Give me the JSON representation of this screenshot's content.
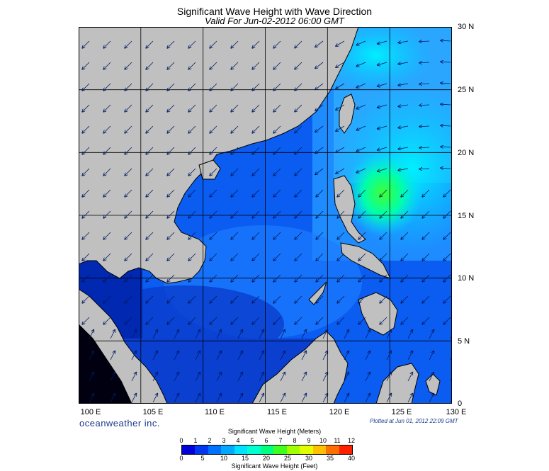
{
  "title": "Significant Wave Height with Wave Direction",
  "subtitle": "Valid For Jun-02-2012 06:00 GMT",
  "lat_labels": [
    "30 N",
    "25 N",
    "20 N",
    "15 N",
    "10 N",
    "5 N",
    "0"
  ],
  "lon_labels": [
    "100 E",
    "105 E",
    "110 E",
    "115 E",
    "120 E",
    "125 E",
    "130 E"
  ],
  "brand": "oceanweather inc.",
  "plotted": "Plotted at Jun 01, 2012 22:09 GMT",
  "legend": {
    "meters_title": "Significant Wave Height (Meters)",
    "feet_title": "Significant Wave Height (Feet)",
    "meters_ticks": [
      "0",
      "1",
      "2",
      "3",
      "4",
      "5",
      "6",
      "7",
      "8",
      "9",
      "10",
      "11",
      "12"
    ],
    "feet_ticks": [
      "0",
      "5",
      "10",
      "15",
      "20",
      "25",
      "30",
      "35",
      "40"
    ],
    "colors": [
      "#0000d8",
      "#0038f0",
      "#0070ff",
      "#00a8ff",
      "#00e0ff",
      "#00ffd0",
      "#00ff80",
      "#40ff20",
      "#a0ff00",
      "#e0ff00",
      "#ffc000",
      "#ff7000",
      "#ff2000"
    ]
  },
  "colors": {
    "land": "#c0c0c0",
    "deep_blue": "#0b3fd9",
    "mid_blue": "#1f7fff",
    "cyan": "#00e4ff",
    "green": "#2dff4a"
  }
}
